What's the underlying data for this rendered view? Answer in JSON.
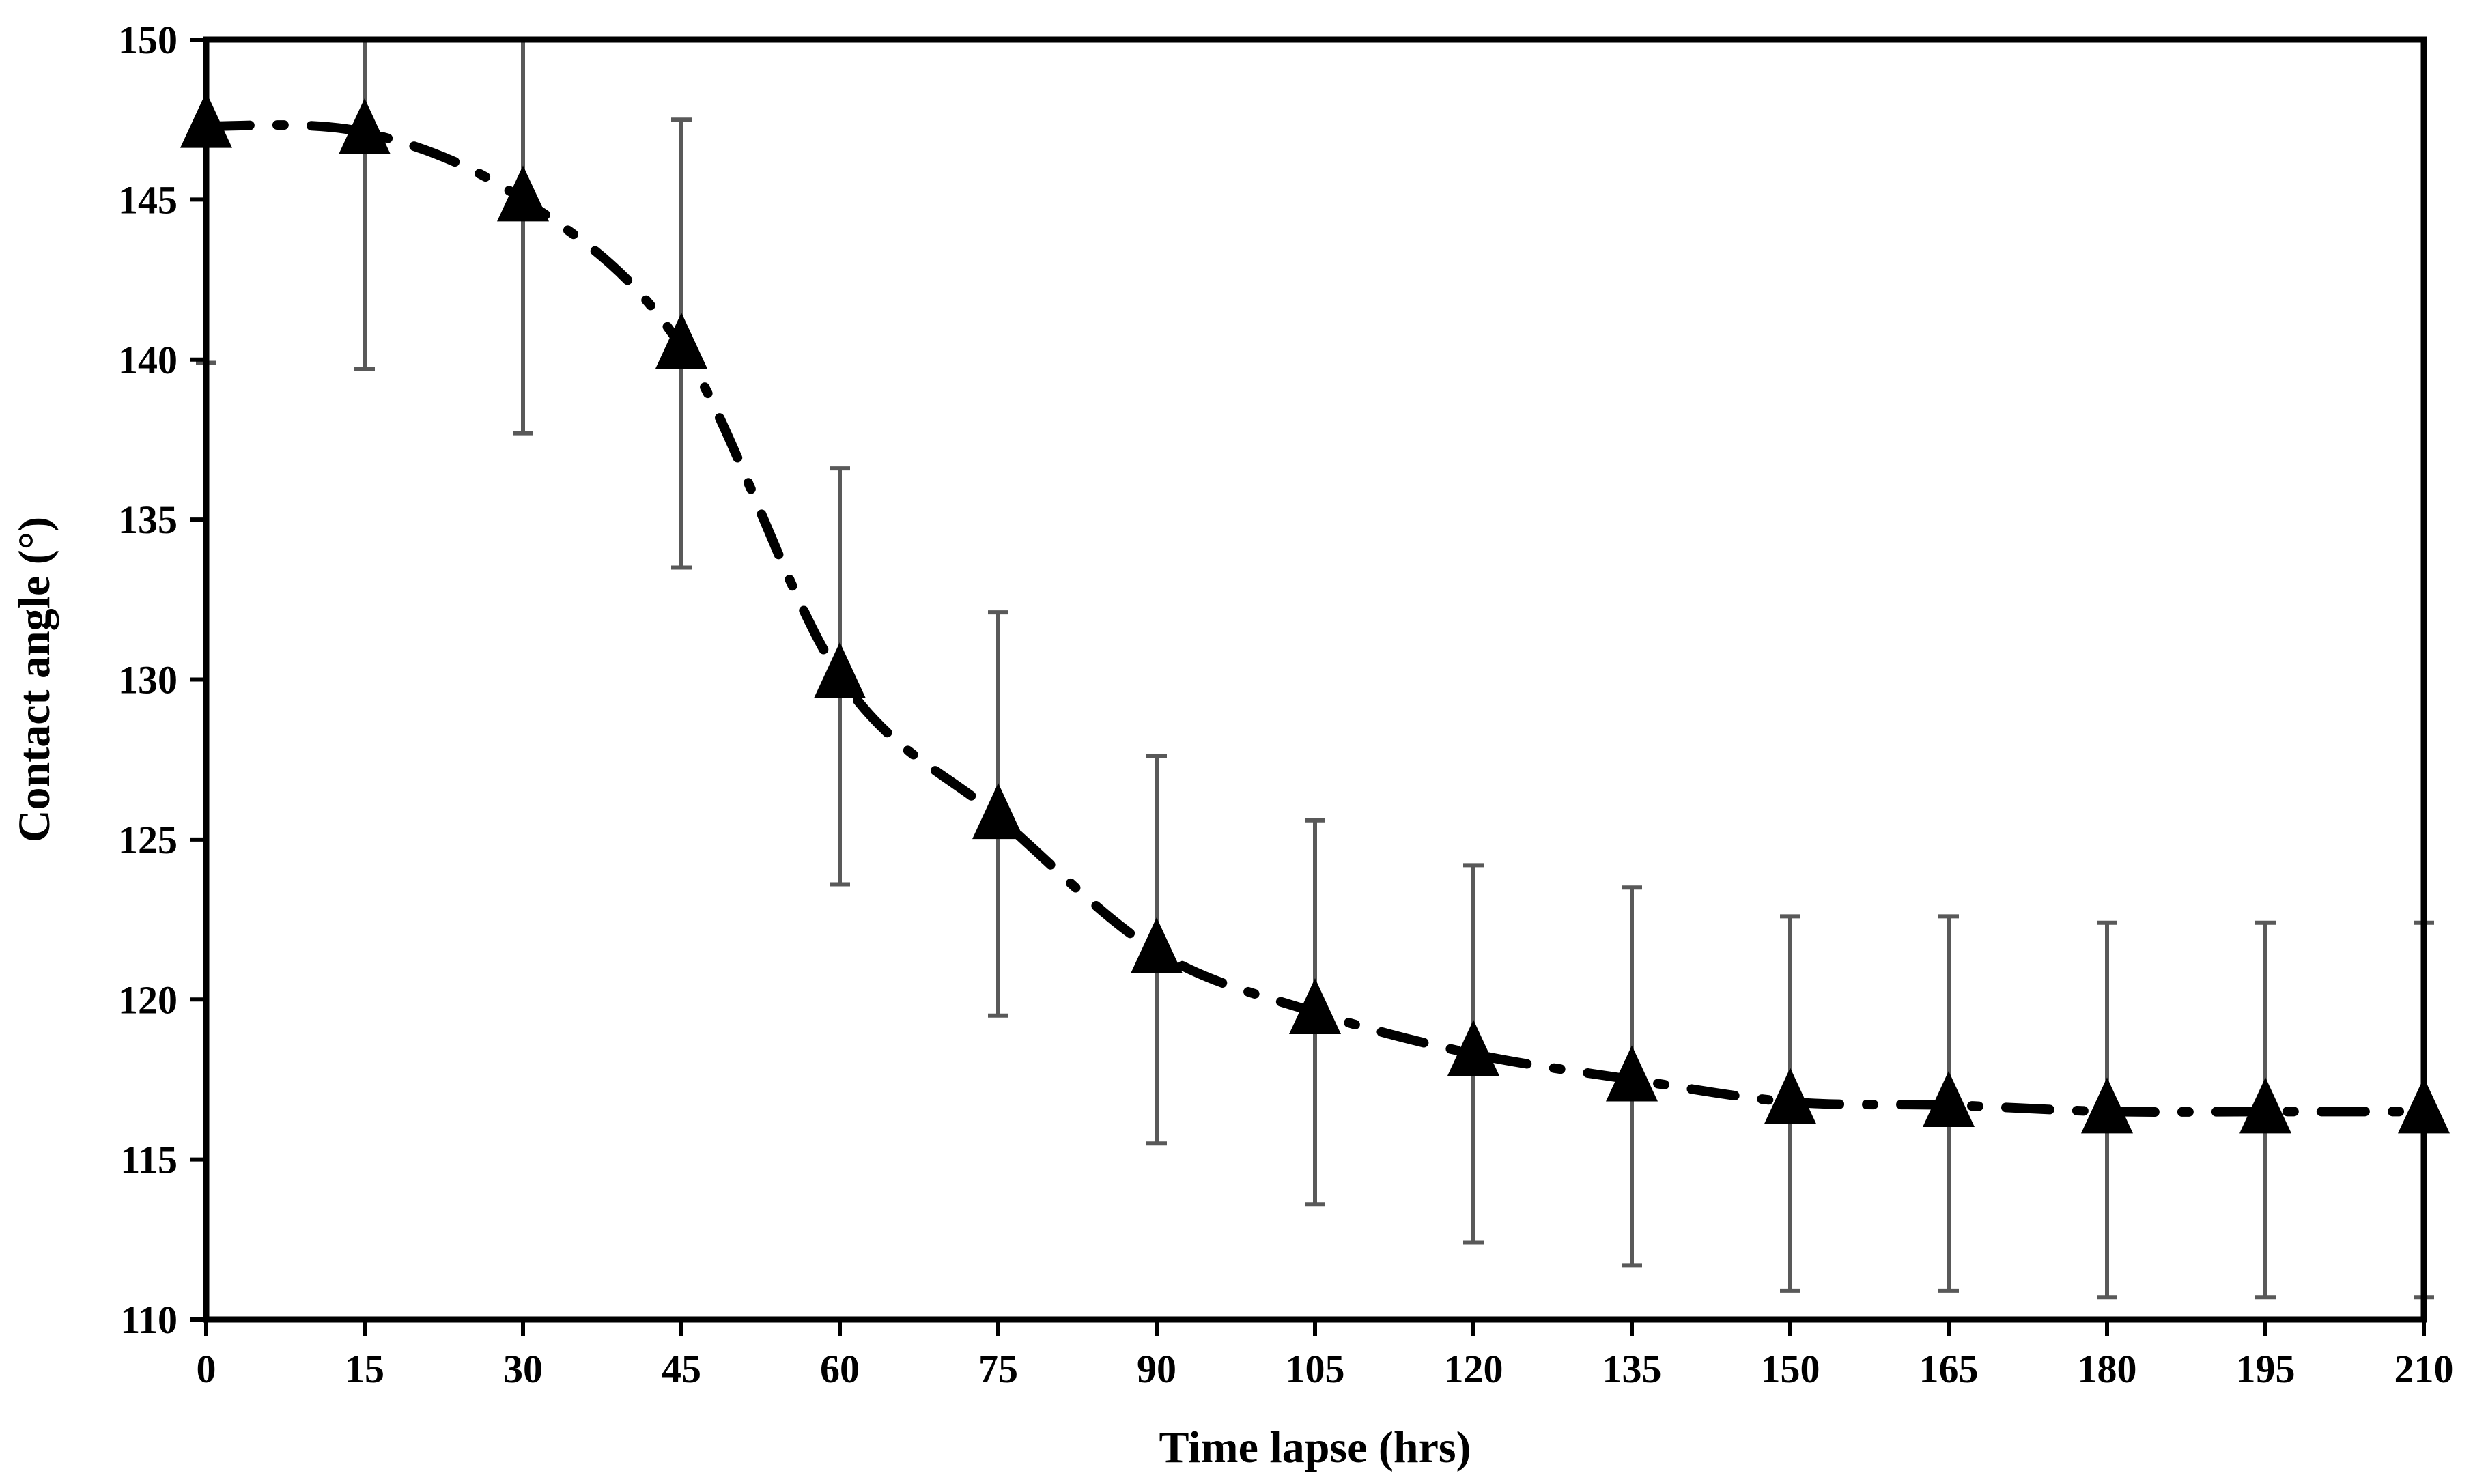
{
  "chart_data": {
    "type": "line",
    "title": "",
    "xlabel": "Time lapse (hrs)",
    "ylabel": "Contact angle (°)",
    "xlim": [
      0,
      210
    ],
    "ylim": [
      110,
      150
    ],
    "xticks": [
      0,
      15,
      30,
      45,
      60,
      75,
      90,
      105,
      120,
      135,
      150,
      165,
      180,
      195,
      210
    ],
    "yticks": [
      110,
      115,
      120,
      125,
      130,
      135,
      140,
      145,
      150
    ],
    "grid": false,
    "legend": "none",
    "series": [
      {
        "name": "Contact angle",
        "marker": "triangle",
        "line_style": "dash-dot",
        "x": [
          0,
          15,
          30,
          45,
          60,
          75,
          90,
          105,
          120,
          135,
          150,
          165,
          180,
          195,
          210
        ],
        "y": [
          147.3,
          147.1,
          145.0,
          140.4,
          130.1,
          125.7,
          121.5,
          119.6,
          118.3,
          117.5,
          116.8,
          116.7,
          116.5,
          116.5,
          116.5
        ],
        "error_low": [
          139.9,
          139.7,
          137.7,
          133.5,
          123.6,
          119.5,
          115.5,
          113.6,
          112.4,
          111.7,
          110.9,
          110.9,
          110.7,
          110.7,
          110.7
        ],
        "error_high": [
          150.0,
          150.0,
          150.0,
          147.5,
          136.6,
          132.1,
          127.6,
          125.6,
          124.2,
          123.5,
          122.6,
          122.6,
          122.4,
          122.4,
          122.4
        ]
      }
    ],
    "colors": {
      "marker": "#000000",
      "line": "#000000",
      "error_bar": "#595959",
      "axis": "#000000"
    }
  }
}
